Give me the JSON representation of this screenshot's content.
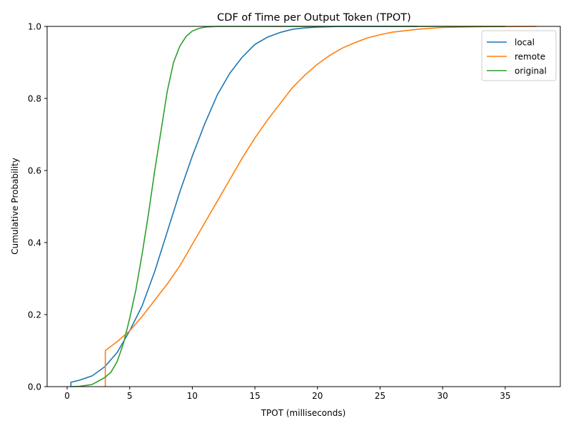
{
  "chart_data": {
    "type": "line",
    "title": "CDF of Time per Output Token (TPOT)",
    "xlabel": "TPOT (milliseconds)",
    "ylabel": "Cumulative Probability",
    "xlim": [
      -1.6,
      39.4
    ],
    "ylim": [
      0,
      1
    ],
    "xticks": [
      0,
      5,
      10,
      15,
      20,
      25,
      30,
      35
    ],
    "yticks": [
      0.0,
      0.2,
      0.4,
      0.6,
      0.8,
      1.0
    ],
    "ytick_labels": [
      "0.0",
      "0.2",
      "0.4",
      "0.6",
      "0.8",
      "1.0"
    ],
    "grid": false,
    "legend_position": "top-right",
    "series": [
      {
        "name": "local",
        "color": "#1f77b4",
        "points": [
          [
            0.3,
            0.0
          ],
          [
            0.3,
            0.012
          ],
          [
            1,
            0.018
          ],
          [
            2,
            0.03
          ],
          [
            3,
            0.055
          ],
          [
            4,
            0.095
          ],
          [
            5,
            0.155
          ],
          [
            6,
            0.225
          ],
          [
            7,
            0.32
          ],
          [
            8,
            0.43
          ],
          [
            9,
            0.54
          ],
          [
            10,
            0.64
          ],
          [
            11,
            0.73
          ],
          [
            12,
            0.81
          ],
          [
            13,
            0.87
          ],
          [
            14,
            0.915
          ],
          [
            15,
            0.95
          ],
          [
            16,
            0.97
          ],
          [
            17,
            0.983
          ],
          [
            18,
            0.992
          ],
          [
            19,
            0.996
          ],
          [
            20,
            0.998
          ],
          [
            22,
            1.0
          ],
          [
            28,
            1.0
          ]
        ]
      },
      {
        "name": "remote",
        "color": "#ff7f0e",
        "points": [
          [
            3.05,
            0.0
          ],
          [
            3.05,
            0.1
          ],
          [
            4,
            0.125
          ],
          [
            5,
            0.155
          ],
          [
            6,
            0.195
          ],
          [
            7,
            0.24
          ],
          [
            8,
            0.285
          ],
          [
            9,
            0.335
          ],
          [
            10,
            0.395
          ],
          [
            11,
            0.455
          ],
          [
            12,
            0.515
          ],
          [
            13,
            0.575
          ],
          [
            14,
            0.635
          ],
          [
            15,
            0.69
          ],
          [
            16,
            0.74
          ],
          [
            17,
            0.785
          ],
          [
            18,
            0.83
          ],
          [
            19,
            0.865
          ],
          [
            20,
            0.895
          ],
          [
            21,
            0.92
          ],
          [
            22,
            0.94
          ],
          [
            23,
            0.955
          ],
          [
            24,
            0.968
          ],
          [
            25,
            0.977
          ],
          [
            26,
            0.984
          ],
          [
            28,
            0.992
          ],
          [
            30,
            0.997
          ],
          [
            33,
            0.999
          ],
          [
            37.5,
            1.0
          ]
        ]
      },
      {
        "name": "original",
        "color": "#2ca02c",
        "points": [
          [
            0.3,
            0.0
          ],
          [
            1,
            0.001
          ],
          [
            2,
            0.006
          ],
          [
            3,
            0.025
          ],
          [
            3.5,
            0.04
          ],
          [
            4,
            0.07
          ],
          [
            4.5,
            0.12
          ],
          [
            5,
            0.19
          ],
          [
            5.5,
            0.27
          ],
          [
            6,
            0.37
          ],
          [
            6.5,
            0.48
          ],
          [
            7,
            0.6
          ],
          [
            7.5,
            0.71
          ],
          [
            8,
            0.82
          ],
          [
            8.5,
            0.9
          ],
          [
            9,
            0.945
          ],
          [
            9.5,
            0.972
          ],
          [
            10,
            0.987
          ],
          [
            10.5,
            0.994
          ],
          [
            11,
            0.998
          ],
          [
            12,
            1.0
          ],
          [
            35,
            1.0
          ]
        ]
      }
    ]
  }
}
